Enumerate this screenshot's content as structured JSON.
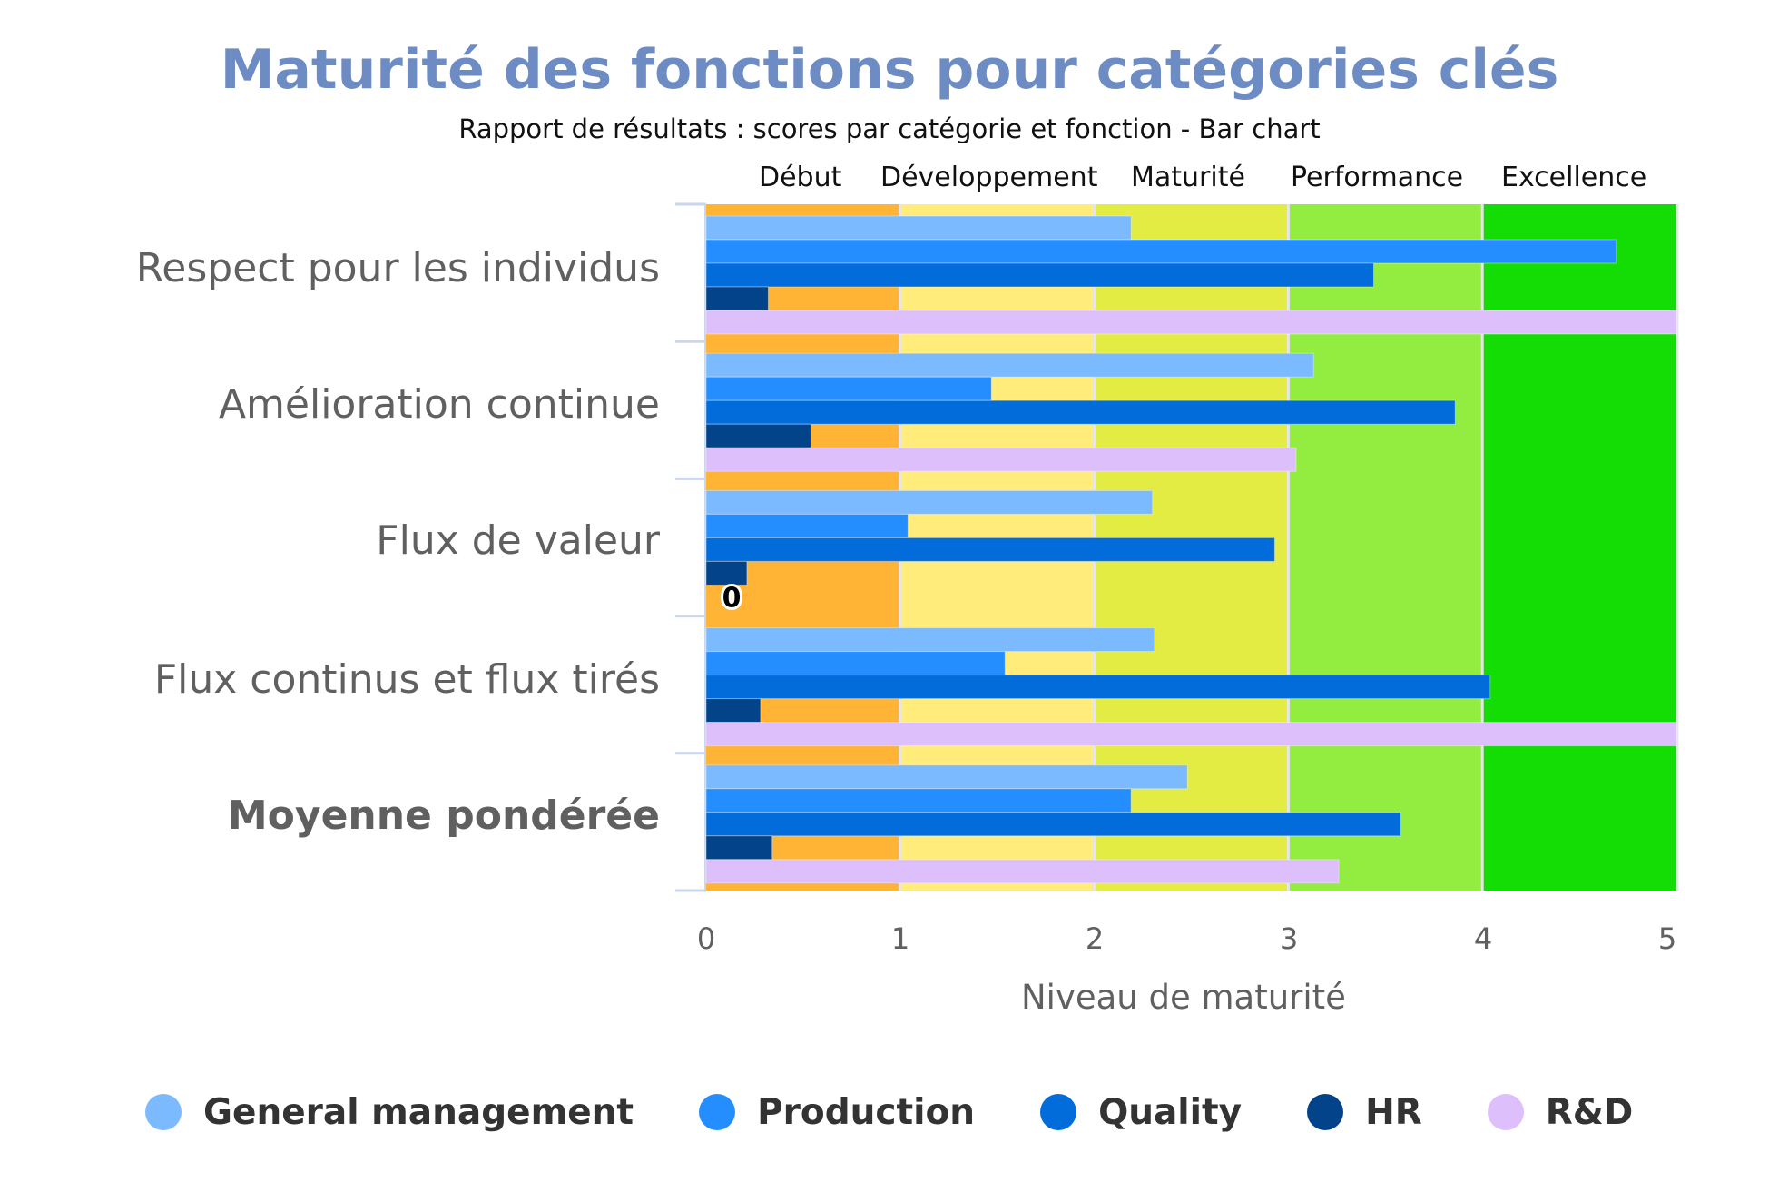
{
  "chart_data": {
    "type": "bar",
    "orientation": "horizontal",
    "title": "Maturité des fonctions pour catégories clés",
    "subtitle": "Rapport de résultats : scores par catégorie et fonction - Bar chart",
    "xlabel": "Niveau de maturité",
    "ylabel": "",
    "xlim": [
      0,
      5
    ],
    "x_ticks": [
      "0",
      "1",
      "2",
      "3",
      "4",
      "5"
    ],
    "categories": [
      "Respect pour les individus",
      "Amélioration continue",
      "Flux de valeur",
      "Flux continus et flux tirés",
      "Moyenne pondérée"
    ],
    "bold_category_index": 4,
    "bands": [
      {
        "label": "Début",
        "from": 0,
        "to": 1,
        "color": "#FFB435"
      },
      {
        "label": "Développement",
        "from": 1,
        "to": 2,
        "color": "#FFEC7A"
      },
      {
        "label": "Maturité",
        "from": 2,
        "to": 3,
        "color": "#E3EC42"
      },
      {
        "label": "Performance",
        "from": 3,
        "to": 4,
        "color": "#93ED40"
      },
      {
        "label": "Excellence",
        "from": 4,
        "to": 5,
        "color": "#13DD05"
      }
    ],
    "series": [
      {
        "name": "General management",
        "color": "#7CBAFF",
        "values": [
          2.19,
          3.13,
          2.3,
          2.31,
          2.48
        ]
      },
      {
        "name": "Production",
        "color": "#258EFF",
        "values": [
          4.69,
          1.47,
          1.04,
          1.54,
          2.19
        ]
      },
      {
        "name": "Quality",
        "color": "#036CDB",
        "values": [
          3.44,
          3.86,
          2.93,
          4.04,
          3.58
        ]
      },
      {
        "name": "HR",
        "color": "#02438A",
        "values": [
          0.32,
          0.54,
          0.21,
          0.28,
          0.34
        ]
      },
      {
        "name": "R&D",
        "color": "#DDC0FB",
        "values": [
          5.0,
          3.04,
          0,
          5.0,
          3.26
        ]
      }
    ],
    "data_labels": [
      {
        "series": "R&D",
        "category": "Flux de valeur",
        "text": "0"
      }
    ],
    "legend": {
      "position": "bottom-center"
    },
    "grid": false
  },
  "colors": {
    "title": "#6E8CC4",
    "axis_text": "#606060",
    "legend_text": "#333333"
  }
}
